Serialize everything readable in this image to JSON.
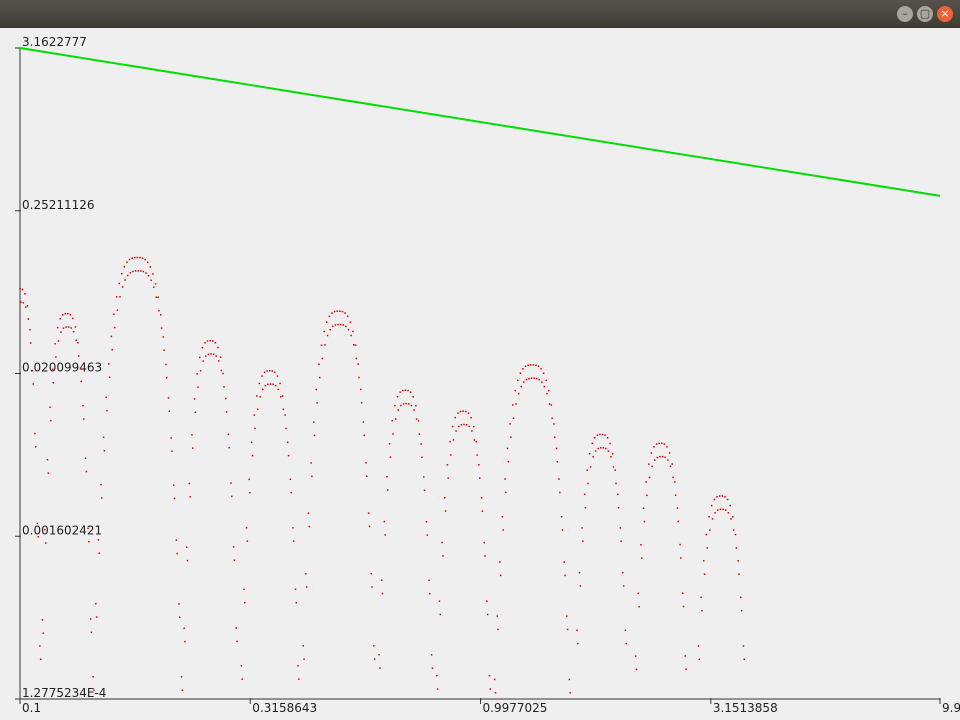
{
  "window": {
    "minimize_icon": "minimize-icon",
    "maximize_icon": "maximize-icon",
    "close_icon": "close-icon",
    "minimize_glyph": "–",
    "maximize_glyph": "▢",
    "close_glyph": "×"
  },
  "chart_data": {
    "type": "scatter",
    "x_scale": "log",
    "y_scale": "log",
    "xlim": [
      0.1,
      9.9
    ],
    "ylim": [
      0.00012775234,
      3.1622777
    ],
    "x_ticks": [
      {
        "value": 0.1,
        "label": "0.1"
      },
      {
        "value": 0.3158643,
        "label": "0.3158643"
      },
      {
        "value": 0.9977025,
        "label": "0.9977025"
      },
      {
        "value": 3.1513858,
        "label": "3.1513858"
      },
      {
        "value": 9.9,
        "label": "9.9"
      }
    ],
    "y_ticks": [
      {
        "value": 3.1622777,
        "label": "3.1622777"
      },
      {
        "value": 0.25211126,
        "label": "0.25211126"
      },
      {
        "value": 0.020099463,
        "label": "0.020099463"
      },
      {
        "value": 0.001602421,
        "label": "0.001602421"
      },
      {
        "value": 0.00012775234,
        "label": "1.2775234E-4"
      }
    ],
    "grid": false,
    "series": [
      {
        "color": "#00dd00",
        "style": "line",
        "points": [
          [
            0.1,
            3.1622777
          ],
          [
            9.9,
            0.3178
          ]
        ]
      },
      {
        "color": "#dd0000",
        "style": "points",
        "arches": [
          {
            "x_start": 0.1,
            "x_peak": 0.1,
            "x_end": 0.1104,
            "y_peak": 0.075,
            "drop_depth": 5.5
          },
          {
            "x_start": 0.1104,
            "x_peak": 0.1262,
            "x_end": 0.1441,
            "y_peak": 0.051,
            "drop_depth": 6.5
          },
          {
            "x_start": 0.1441,
            "x_peak": 0.1796,
            "x_end": 0.224,
            "y_peak": 0.122,
            "drop_depth": 6.5
          },
          {
            "x_start": 0.224,
            "x_peak": 0.2585,
            "x_end": 0.2982,
            "y_peak": 0.0335,
            "drop_depth": 6.0
          },
          {
            "x_start": 0.2982,
            "x_peak": 0.348,
            "x_end": 0.4061,
            "y_peak": 0.021,
            "drop_depth": 6.0
          },
          {
            "x_start": 0.4061,
            "x_peak": 0.4908,
            "x_end": 0.5931,
            "y_peak": 0.053,
            "drop_depth": 6.5
          },
          {
            "x_start": 0.5931,
            "x_peak": 0.6851,
            "x_end": 0.7915,
            "y_peak": 0.0155,
            "drop_depth": 5.5
          },
          {
            "x_start": 0.7915,
            "x_peak": 0.9145,
            "x_end": 1.0567,
            "y_peak": 0.0112,
            "drop_depth": 5.5
          },
          {
            "x_start": 1.0567,
            "x_peak": 1.2898,
            "x_end": 1.5744,
            "y_peak": 0.023,
            "drop_depth": 6.0
          },
          {
            "x_start": 1.5744,
            "x_peak": 1.8223,
            "x_end": 2.1093,
            "y_peak": 0.0078,
            "drop_depth": 5.5
          },
          {
            "x_start": 2.1093,
            "x_peak": 2.4506,
            "x_end": 2.8467,
            "y_peak": 0.0068,
            "drop_depth": 6.0
          },
          {
            "x_start": 2.8467,
            "x_peak": 3.3142,
            "x_end": 3.8585,
            "y_peak": 0.003,
            "drop_depth": 6.0
          }
        ]
      }
    ]
  }
}
